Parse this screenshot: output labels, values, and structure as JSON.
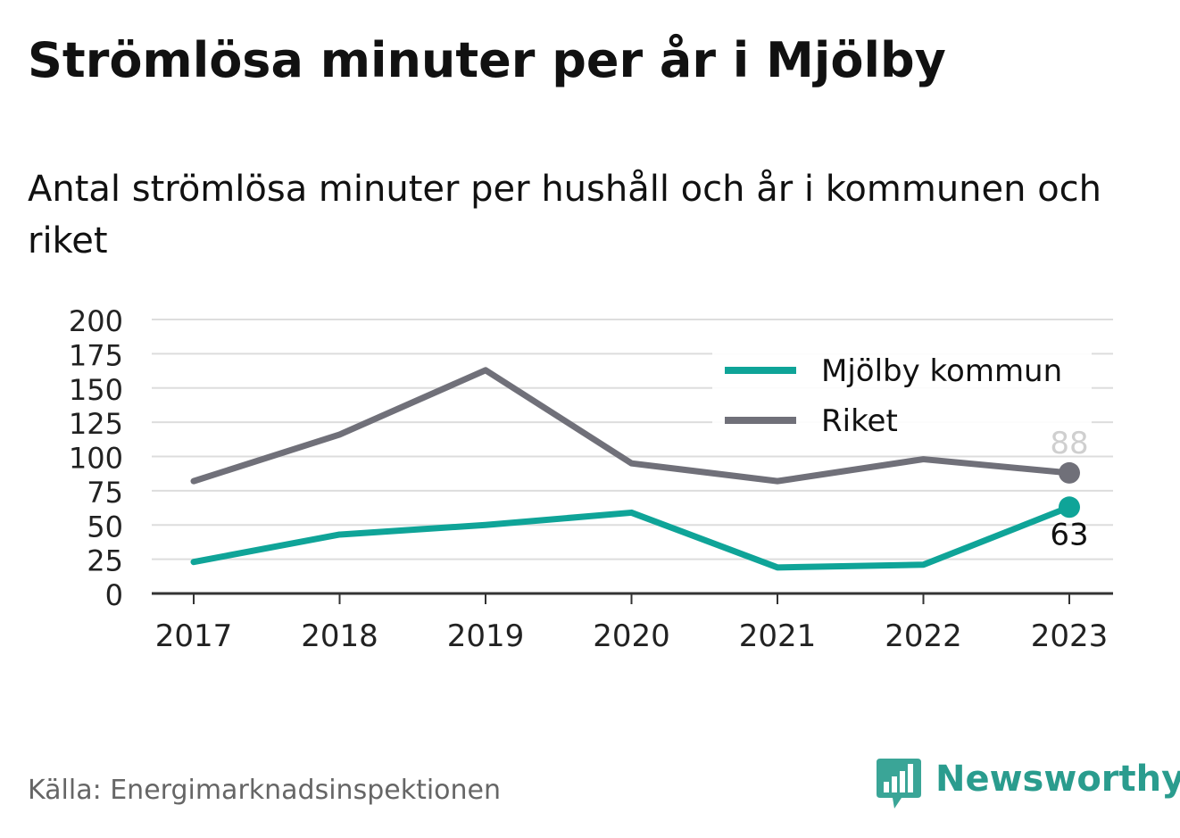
{
  "title": "Strömlösa minuter per år i Mjölby",
  "subtitle": "Antal strömlösa minuter per hushåll och år i kommunen och riket",
  "source": "Källa: Energimarknadsinspektionen",
  "brand": "Newsworthy",
  "colors": {
    "mjolby": "#0fa498",
    "riket": "#707079",
    "grid": "#dddddd",
    "axis": "#333333"
  },
  "chart_data": {
    "type": "line",
    "x": [
      "2017",
      "2018",
      "2019",
      "2020",
      "2021",
      "2022",
      "2023"
    ],
    "ylim": [
      0,
      200
    ],
    "yticks": [
      "0",
      "25",
      "50",
      "75",
      "100",
      "125",
      "150",
      "175",
      "200"
    ],
    "grid": true,
    "legend_position": "top-right",
    "series": [
      {
        "name": "Mjölby kommun",
        "values": [
          23,
          43,
          50,
          59,
          19,
          21,
          63
        ],
        "end_label": "63"
      },
      {
        "name": "Riket",
        "values": [
          82,
          116,
          163,
          95,
          82,
          98,
          88
        ],
        "end_label": "88"
      }
    ]
  }
}
